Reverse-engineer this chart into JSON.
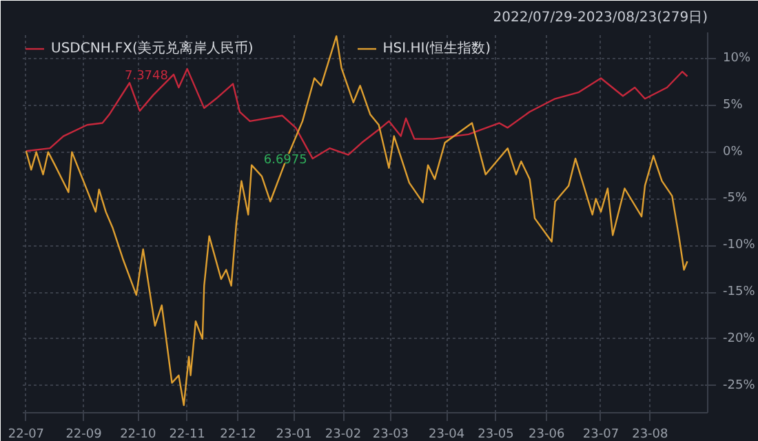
{
  "chart_data": {
    "type": "line",
    "subtitle": "2022/07/29-2023/08/23(279日)",
    "xlim": [
      "2022-07-27",
      "2023-09-04"
    ],
    "xticks": [
      {
        "value": "2022-07-29",
        "label": "22-07"
      },
      {
        "value": "2022-09-01",
        "label": "22-09"
      },
      {
        "value": "2022-10-03",
        "label": "22-10"
      },
      {
        "value": "2022-11-01",
        "label": "22-11"
      },
      {
        "value": "2022-12-01",
        "label": "22-12"
      },
      {
        "value": "2023-01-03",
        "label": "23-01"
      },
      {
        "value": "2023-02-01",
        "label": "23-02"
      },
      {
        "value": "2023-03-01",
        "label": "23-03"
      },
      {
        "value": "2023-04-03",
        "label": "23-04"
      },
      {
        "value": "2023-05-02",
        "label": "23-05"
      },
      {
        "value": "2023-06-01",
        "label": "23-06"
      },
      {
        "value": "2023-07-03",
        "label": "23-07"
      },
      {
        "value": "2023-08-01",
        "label": "23-08"
      }
    ],
    "ylim": [
      -27.9,
      12.8
    ],
    "yticks": [
      {
        "value": -25,
        "label": "-25%"
      },
      {
        "value": -20,
        "label": "-20%"
      },
      {
        "value": -15,
        "label": "-15%"
      },
      {
        "value": -10,
        "label": "-10%"
      },
      {
        "value": -5,
        "label": "-5%"
      },
      {
        "value": 0,
        "label": "0%"
      },
      {
        "value": 5,
        "label": "5%"
      },
      {
        "value": 10,
        "label": "10%"
      }
    ],
    "grid": true,
    "legend": "top left",
    "line_style": "solid",
    "series": [
      {
        "name": "USDCNH.FX(美元兑离岸人民币)",
        "color": "#c8283c",
        "x": [
          "2022-07-29",
          "2022-08-12",
          "2022-08-20",
          "2022-09-03",
          "2022-09-12",
          "2022-09-16",
          "2022-09-28",
          "2022-10-04",
          "2022-10-12",
          "2022-10-24",
          "2022-10-27",
          "2022-11-01",
          "2022-11-11",
          "2022-11-18",
          "2022-11-28",
          "2022-12-02",
          "2022-12-08",
          "2022-12-27",
          "2023-01-04",
          "2023-01-14",
          "2023-01-24",
          "2023-02-04",
          "2023-02-12",
          "2023-02-22",
          "2023-02-28",
          "2023-03-07",
          "2023-03-10",
          "2023-03-15",
          "2023-03-26",
          "2023-04-16",
          "2023-05-04",
          "2023-05-09",
          "2023-05-22",
          "2023-06-06",
          "2023-06-20",
          "2023-07-03",
          "2023-07-16",
          "2023-07-23",
          "2023-07-29",
          "2023-08-11",
          "2023-08-20",
          "2023-08-23"
        ],
        "values": [
          0.1,
          0.4,
          1.7,
          2.9,
          3.1,
          4.0,
          7.4,
          4.4,
          6.1,
          8.3,
          6.9,
          8.9,
          4.7,
          5.7,
          7.3,
          4.3,
          3.3,
          3.9,
          2.6,
          -0.7,
          0.4,
          -0.3,
          1.0,
          2.4,
          3.3,
          1.7,
          3.6,
          1.4,
          1.4,
          1.9,
          3.1,
          2.6,
          4.3,
          5.7,
          6.4,
          7.9,
          6.0,
          6.9,
          5.7,
          6.9,
          8.6,
          8.1
        ]
      },
      {
        "name": "HSI.HI(恒生指数)",
        "color": "#e0a030",
        "x": [
          "2022-07-29",
          "2022-08-01",
          "2022-08-04",
          "2022-08-08",
          "2022-08-11",
          "2022-08-15",
          "2022-08-23",
          "2022-08-25",
          "2022-09-08",
          "2022-09-10",
          "2022-09-14",
          "2022-09-18",
          "2022-09-24",
          "2022-10-02",
          "2022-10-06",
          "2022-10-13",
          "2022-10-17",
          "2022-10-23",
          "2022-10-27",
          "2022-10-30",
          "2022-11-02",
          "2022-11-03",
          "2022-11-06",
          "2022-11-10",
          "2022-11-11",
          "2022-11-14",
          "2022-11-21",
          "2022-11-24",
          "2022-11-27",
          "2022-11-30",
          "2022-12-03",
          "2022-12-07",
          "2022-12-09",
          "2022-12-15",
          "2022-12-20",
          "2022-12-29",
          "2023-01-08",
          "2023-01-15",
          "2023-01-19",
          "2023-01-28",
          "2023-01-31",
          "2023-02-07",
          "2023-02-11",
          "2023-02-17",
          "2023-02-22",
          "2023-02-28",
          "2023-03-03",
          "2023-03-12",
          "2023-03-20",
          "2023-03-23",
          "2023-03-27",
          "2023-04-02",
          "2023-04-18",
          "2023-04-26",
          "2023-05-09",
          "2023-05-14",
          "2023-05-17",
          "2023-05-22",
          "2023-05-25",
          "2023-06-04",
          "2023-06-06",
          "2023-06-14",
          "2023-06-18",
          "2023-06-28",
          "2023-06-30",
          "2023-07-03",
          "2023-07-07",
          "2023-07-10",
          "2023-07-17",
          "2023-07-27",
          "2023-07-29",
          "2023-08-03",
          "2023-08-08",
          "2023-08-14",
          "2023-08-18",
          "2023-08-21",
          "2023-08-23"
        ],
        "values": [
          0.1,
          -1.9,
          0.0,
          -2.4,
          0.0,
          -1.4,
          -4.3,
          0.0,
          -6.4,
          -4.0,
          -6.4,
          -8.1,
          -11.4,
          -15.3,
          -10.4,
          -18.6,
          -16.4,
          -24.7,
          -23.9,
          -27.1,
          -21.9,
          -23.9,
          -18.1,
          -20.0,
          -14.3,
          -9.0,
          -13.6,
          -12.6,
          -14.3,
          -7.6,
          -3.1,
          -6.7,
          -1.4,
          -2.6,
          -5.3,
          -1.0,
          3.3,
          7.9,
          7.1,
          12.4,
          9.0,
          5.3,
          7.1,
          4.0,
          2.9,
          -1.7,
          1.7,
          -3.3,
          -5.4,
          -1.4,
          -2.9,
          1.0,
          3.1,
          -2.4,
          0.4,
          -2.4,
          -1.0,
          -2.9,
          -7.1,
          -9.6,
          -5.3,
          -3.6,
          -0.7,
          -6.7,
          -5.0,
          -6.4,
          -3.9,
          -8.9,
          -3.9,
          -6.9,
          -3.6,
          -0.4,
          -3.1,
          -4.7,
          -9.0,
          -12.6,
          -11.7
        ]
      }
    ],
    "annotations": [
      {
        "text": "7.3748",
        "x": "2022-10-24",
        "y": 8.3
      },
      {
        "text": "6.6975",
        "x": "2023-01-14",
        "y": -0.7
      }
    ]
  }
}
